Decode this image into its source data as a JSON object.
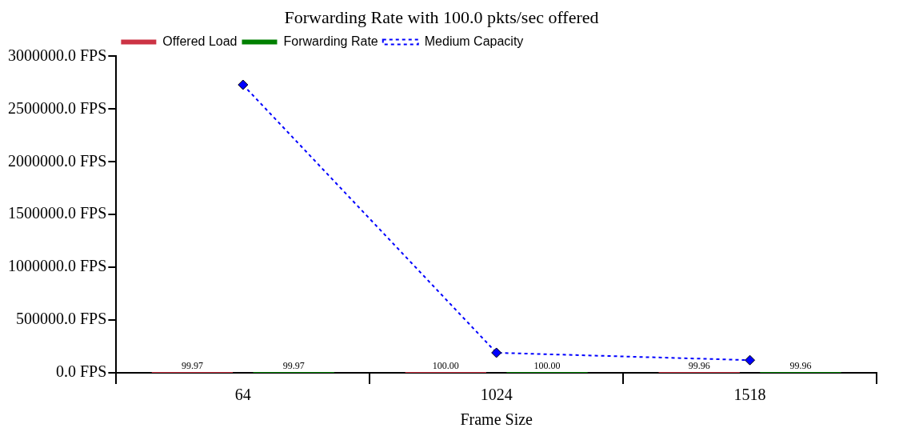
{
  "chart_data": {
    "type": "bar",
    "title": "Forwarding Rate with 100.0 pkts/sec offered",
    "xlabel": "Frame Size",
    "categories": [
      "64",
      "1024",
      "1518"
    ],
    "series": [
      {
        "name": "Offered Load",
        "color": "#cc3344",
        "values": [
          99.97,
          100,
          99.96
        ],
        "value_labels": [
          "99.97",
          "100.00",
          "99.96"
        ]
      },
      {
        "name": "Forwarding Rate",
        "color": "#008000",
        "values": [
          99.97,
          100,
          99.96
        ],
        "value_labels": [
          "99.97",
          "100.00",
          "99.96"
        ]
      },
      {
        "name": "Medium Capacity",
        "type": "line",
        "color": "#0000ff",
        "values": [
          2730000,
          190000,
          120000
        ],
        "marker": "diamond",
        "line_style": "dashed"
      }
    ],
    "ylim": [
      0,
      3000000
    ],
    "yticks": [
      {
        "value": 0,
        "label": "0.0 FPS"
      },
      {
        "value": 500000,
        "label": "500000.0 FPS"
      },
      {
        "value": 1000000,
        "label": "1000000.0 FPS"
      },
      {
        "value": 1500000,
        "label": "1500000.0 FPS"
      },
      {
        "value": 2000000,
        "label": "2000000.0 FPS"
      },
      {
        "value": 2500000,
        "label": "2500000.0 FPS"
      },
      {
        "value": 3000000,
        "label": "3000000.0 FPS"
      }
    ],
    "grid": false,
    "legend": "top left"
  }
}
